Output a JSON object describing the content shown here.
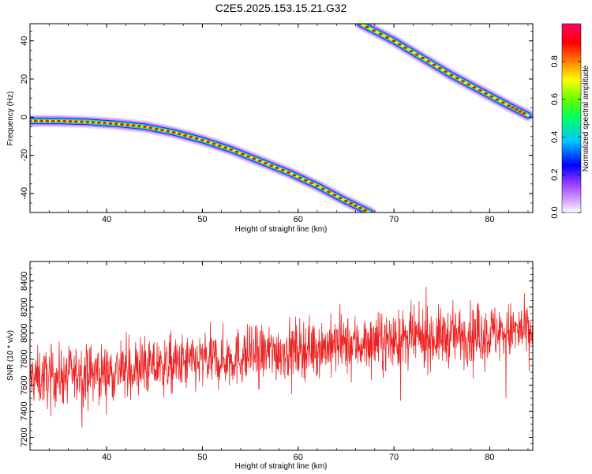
{
  "title": "C2E5.2025.153.15.21.G32",
  "colors": {
    "snr_line": "#ee2222",
    "frame": "#000000"
  },
  "chart_data": [
    {
      "type": "heatmap",
      "name": "spectrogram",
      "xlabel": "Height of straight line (km)",
      "ylabel": "Frequency (Hz)",
      "xlim": [
        32,
        84.5
      ],
      "ylim": [
        -50,
        49
      ],
      "xticks": [
        40,
        50,
        60,
        70,
        80
      ],
      "yticks": [
        -40,
        -20,
        0,
        20,
        40
      ],
      "colorbar": {
        "label": "Normalized spectral amplitude",
        "range": [
          0,
          1
        ],
        "ticks": [
          "0.0",
          "0.2",
          "0.4",
          "0.6",
          "0.8"
        ],
        "tick_values": [
          0.0,
          0.2,
          0.4,
          0.6,
          0.8
        ],
        "colormap": [
          "#ffffff",
          "#dcb4ff",
          "#7d00ff",
          "#0000ff",
          "#00c8ff",
          "#00ff64",
          "#64ff00",
          "#ffff00",
          "#ff8000",
          "#ff0000",
          "#ff0064"
        ]
      },
      "ridges": [
        {
          "x": [
            32,
            35,
            38,
            41,
            44,
            47,
            50,
            53,
            56,
            59,
            62,
            65,
            67.5
          ],
          "y": [
            -2,
            -2,
            -2.5,
            -3.5,
            -5,
            -8,
            -12,
            -17,
            -23,
            -29,
            -36,
            -44,
            -50
          ]
        },
        {
          "x": [
            66.5,
            70,
            73,
            76,
            79,
            82,
            84
          ],
          "y": [
            49,
            40,
            31,
            22,
            14,
            6,
            1
          ]
        }
      ]
    },
    {
      "type": "line",
      "name": "snr",
      "xlabel": "Height of straight line (km)",
      "ylabel": "SNR (10 * v/v)",
      "xlim": [
        32,
        84.5
      ],
      "ylim": [
        7100,
        8550
      ],
      "xticks": [
        40,
        50,
        60,
        70,
        80
      ],
      "yticks": [
        7200,
        7400,
        7600,
        7800,
        8000,
        8200,
        8400
      ],
      "trend": {
        "x": [
          32,
          40,
          50,
          60,
          70,
          80,
          84.5
        ],
        "y": [
          7650,
          7700,
          7780,
          7880,
          7940,
          8000,
          8020
        ]
      },
      "noise_amplitude": 170,
      "n_points": 1500,
      "series": [
        {
          "color": "#ee2222"
        }
      ]
    }
  ]
}
